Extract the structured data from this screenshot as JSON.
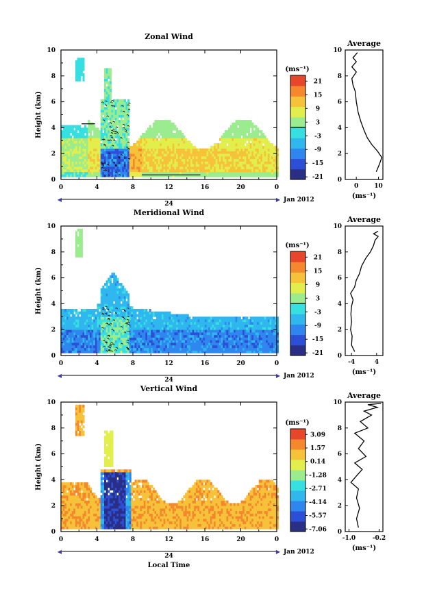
{
  "figure": {
    "date_label": "Jan 2012",
    "day_label": "24",
    "xlabel": "Local Time",
    "ylabel": "Height (km)"
  },
  "chart_data": [
    {
      "type": "heatmap",
      "title": "Zonal Wind",
      "xlabel": "",
      "ylabel": "Height (km)",
      "xlim": [
        0,
        24
      ],
      "ylim": [
        0,
        10
      ],
      "x_ticks": [
        "0",
        "4",
        "8",
        "12",
        "16",
        "20",
        "0"
      ],
      "y_ticks": [
        "0",
        "2",
        "4",
        "6",
        "8",
        "10"
      ],
      "colorbar": {
        "unit": "(ms⁻¹)",
        "ticks": [
          "21",
          "15",
          "9",
          "3",
          "-3",
          "-9",
          "-15",
          "-21"
        ],
        "range": [
          -24,
          24
        ]
      },
      "profile": {
        "title": "Average",
        "xlabel": "(ms⁻¹)",
        "x_ticks": [
          "0",
          "10"
        ],
        "x_tick_values": [
          0,
          10
        ],
        "xlim": [
          -5,
          12
        ],
        "y_ticks": [
          "0",
          "2",
          "4",
          "6",
          "8",
          "10"
        ],
        "points": [
          [
            9,
            0.6
          ],
          [
            10.5,
            1.2
          ],
          [
            11.5,
            1.7
          ],
          [
            9.5,
            2.2
          ],
          [
            7,
            2.7
          ],
          [
            5,
            3.2
          ],
          [
            3.5,
            3.8
          ],
          [
            2,
            4.5
          ],
          [
            0.8,
            5.2
          ],
          [
            0,
            6.0
          ],
          [
            -0.5,
            6.8
          ],
          [
            -1.5,
            7.3
          ],
          [
            -2,
            7.8
          ],
          [
            0,
            8.3
          ],
          [
            -2,
            8.7
          ],
          [
            0,
            9.1
          ],
          [
            -1.5,
            9.4
          ],
          [
            0.5,
            9.8
          ]
        ]
      }
    },
    {
      "type": "heatmap",
      "title": "Meridional Wind",
      "xlabel": "",
      "ylabel": "Height (km)",
      "xlim": [
        0,
        24
      ],
      "ylim": [
        0,
        10
      ],
      "x_ticks": [
        "0",
        "4",
        "8",
        "12",
        "16",
        "20",
        "0"
      ],
      "y_ticks": [
        "0",
        "2",
        "4",
        "6",
        "8",
        "10"
      ],
      "colorbar": {
        "unit": "(ms⁻¹)",
        "ticks": [
          "21",
          "15",
          "9",
          "3",
          "-3",
          "-9",
          "-15",
          "-21"
        ],
        "range": [
          -24,
          24
        ]
      },
      "profile": {
        "title": "Average",
        "xlabel": "(ms⁻¹)",
        "x_ticks": [
          "-4",
          "4"
        ],
        "x_tick_values": [
          -4,
          4
        ],
        "xlim": [
          -6,
          6
        ],
        "y_ticks": [
          "0",
          "2",
          "4",
          "6",
          "8",
          "10"
        ],
        "points": [
          [
            -3,
            0.3
          ],
          [
            -4,
            0.8
          ],
          [
            -3.8,
            1.5
          ],
          [
            -4.3,
            2.0
          ],
          [
            -4,
            2.6
          ],
          [
            -4.2,
            3.2
          ],
          [
            -4,
            3.8
          ],
          [
            -3.5,
            4.3
          ],
          [
            -4.3,
            4.8
          ],
          [
            -3,
            5.3
          ],
          [
            -2.5,
            5.8
          ],
          [
            -1.5,
            6.3
          ],
          [
            -0.8,
            6.9
          ],
          [
            0.5,
            7.5
          ],
          [
            2,
            8.0
          ],
          [
            3,
            8.5
          ],
          [
            3.5,
            8.9
          ],
          [
            4.5,
            9.2
          ],
          [
            3,
            9.4
          ],
          [
            4.5,
            9.6
          ]
        ]
      }
    },
    {
      "type": "heatmap",
      "title": "Vertical Wind",
      "xlabel": "Local Time",
      "ylabel": "Height (km)",
      "xlim": [
        0,
        24
      ],
      "ylim": [
        0,
        10
      ],
      "x_ticks": [
        "0",
        "4",
        "8",
        "12",
        "16",
        "20",
        "0"
      ],
      "y_ticks": [
        "0",
        "2",
        "4",
        "6",
        "8",
        "10"
      ],
      "colorbar": {
        "unit": "(ms⁻¹)",
        "ticks": [
          "3.09",
          "1.57",
          "0.14",
          "-1.28",
          "-2.71",
          "-4.14",
          "-5.57",
          "-7.06"
        ],
        "range": [
          -7.8,
          3.8
        ]
      },
      "profile": {
        "title": "Average",
        "xlabel": "(ms⁻¹)",
        "x_ticks": [
          "-1.0",
          "-0.2"
        ],
        "x_tick_values": [
          -1.0,
          -0.2
        ],
        "xlim": [
          -1.1,
          -0.1
        ],
        "y_ticks": [
          "0",
          "2",
          "4",
          "6",
          "8",
          "10"
        ],
        "points": [
          [
            -0.75,
            0.3
          ],
          [
            -0.8,
            1.0
          ],
          [
            -0.72,
            1.8
          ],
          [
            -0.8,
            2.6
          ],
          [
            -0.75,
            3.3
          ],
          [
            -0.95,
            3.8
          ],
          [
            -0.8,
            4.3
          ],
          [
            -0.65,
            4.8
          ],
          [
            -0.85,
            5.3
          ],
          [
            -0.55,
            5.8
          ],
          [
            -0.75,
            6.4
          ],
          [
            -0.6,
            7.0
          ],
          [
            -0.85,
            7.6
          ],
          [
            -0.5,
            8.0
          ],
          [
            -0.7,
            8.5
          ],
          [
            -0.4,
            9.0
          ],
          [
            -0.6,
            9.3
          ],
          [
            -0.25,
            9.6
          ],
          [
            -0.5,
            9.8
          ],
          [
            -0.15,
            9.9
          ]
        ]
      }
    }
  ]
}
